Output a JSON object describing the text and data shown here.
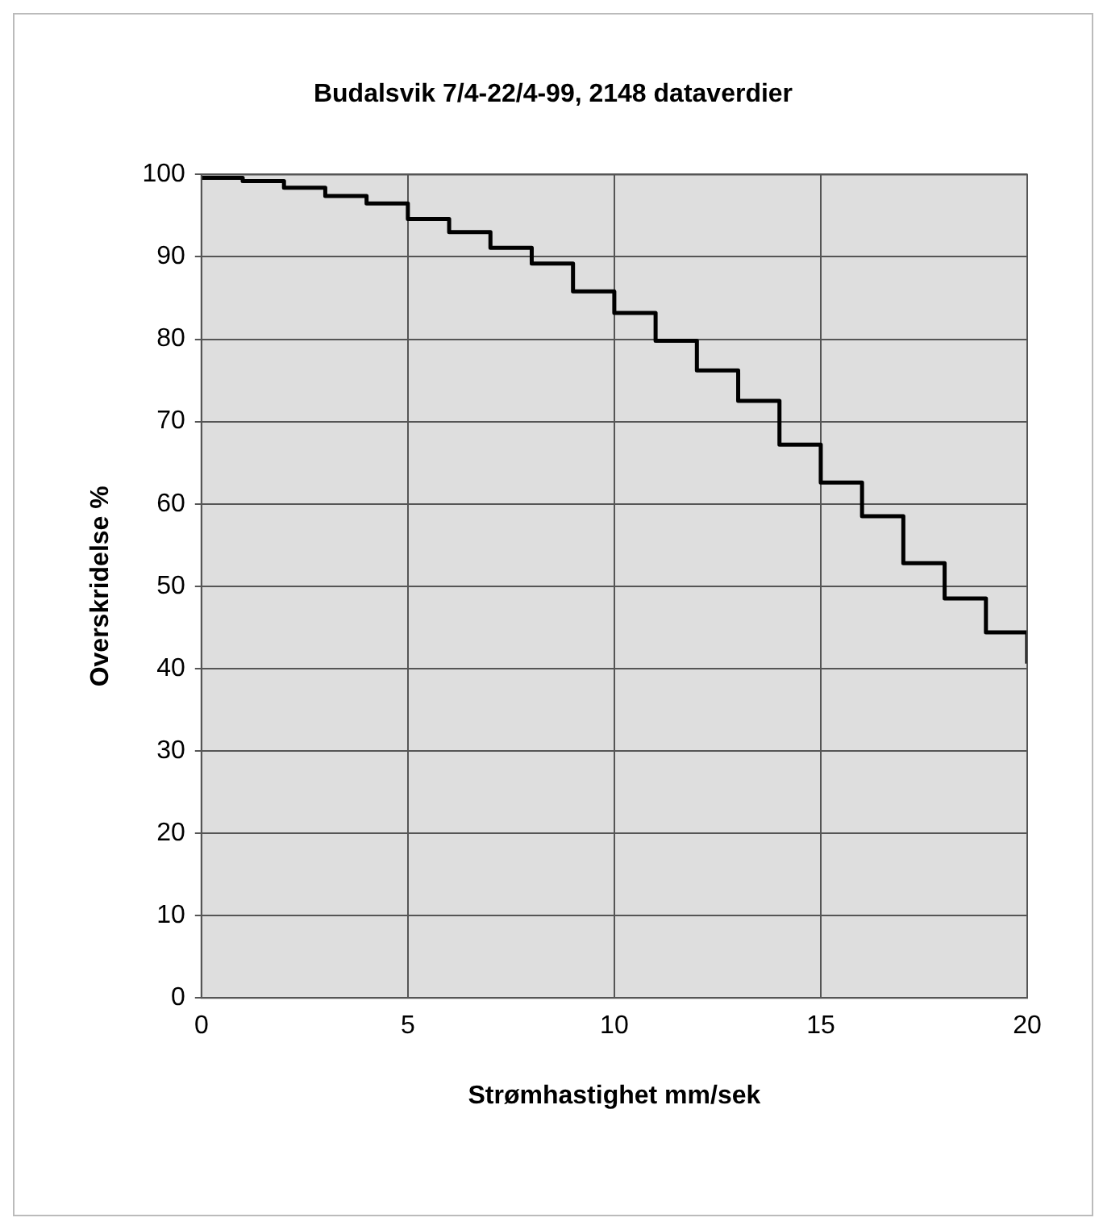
{
  "chart_data": {
    "type": "step",
    "title": "Budalsvik 7/4-22/4-99, 2148 dataverdier",
    "xlabel": "Strømhastighet mm/sek",
    "ylabel": "Overskridelse %",
    "x": [
      0,
      1,
      2,
      3,
      4,
      5,
      6,
      7,
      8,
      9,
      10,
      11,
      12,
      13,
      14,
      15,
      16,
      17,
      18,
      19,
      20,
      20
    ],
    "values": [
      99.6,
      99.2,
      98.4,
      97.4,
      96.5,
      94.6,
      93,
      91.1,
      89.2,
      85.8,
      83.2,
      79.8,
      76.2,
      72.5,
      67.2,
      62.6,
      58.5,
      52.8,
      48.5,
      44.4,
      44.4,
      40.6
    ],
    "color": "#000000",
    "xlim": [
      0,
      20
    ],
    "xticks": [
      0,
      5,
      10,
      15,
      20
    ],
    "ylim": [
      0,
      100
    ],
    "yticks": [
      0,
      10,
      20,
      30,
      40,
      50,
      60,
      70,
      80,
      90,
      100
    ],
    "grid": true,
    "legend": false
  }
}
